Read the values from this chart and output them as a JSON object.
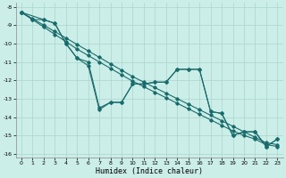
{
  "xlabel": "Humidex (Indice chaleur)",
  "background_color": "#cceee8",
  "grid_color": "#aad4cc",
  "line_color": "#1a6b6b",
  "xlim": [
    0,
    23
  ],
  "ylim": [
    -16,
    -8
  ],
  "yticks": [
    -8,
    -9,
    -10,
    -11,
    -12,
    -13,
    -14,
    -15,
    -16
  ],
  "xticks": [
    0,
    1,
    2,
    3,
    4,
    5,
    6,
    7,
    8,
    9,
    10,
    11,
    12,
    13,
    14,
    15,
    16,
    17,
    18,
    19,
    20,
    21,
    22,
    23
  ],
  "series": [
    {
      "x": [
        0,
        1,
        2,
        3,
        4,
        5,
        6,
        7,
        8,
        9,
        10,
        11,
        12,
        13,
        14,
        15,
        16,
        17,
        18,
        19,
        20,
        21,
        22,
        23
      ],
      "y": [
        -8.3,
        -8.65,
        -9.0,
        -9.35,
        -9.7,
        -10.05,
        -10.4,
        -10.75,
        -11.1,
        -11.45,
        -11.8,
        -12.1,
        -12.4,
        -12.7,
        -13.0,
        -13.3,
        -13.6,
        -13.9,
        -14.2,
        -14.5,
        -14.8,
        -15.1,
        -15.4,
        -15.5
      ]
    },
    {
      "x": [
        0,
        1,
        2,
        3,
        4,
        5,
        6,
        7,
        8,
        9,
        10,
        11,
        12,
        13,
        14,
        15,
        16,
        17,
        18,
        19,
        20,
        21,
        22,
        23
      ],
      "y": [
        -8.3,
        -8.7,
        -9.1,
        -9.5,
        -9.9,
        -10.3,
        -10.65,
        -11.0,
        -11.35,
        -11.7,
        -12.05,
        -12.35,
        -12.65,
        -12.95,
        -13.25,
        -13.55,
        -13.85,
        -14.15,
        -14.45,
        -14.75,
        -15.0,
        -15.2,
        -15.5,
        -15.6
      ]
    },
    {
      "x": [
        0,
        1,
        2,
        3,
        4,
        5,
        6,
        7,
        8,
        9,
        10,
        11,
        12,
        13,
        14,
        15,
        16,
        17,
        18,
        19,
        20,
        21,
        22,
        23
      ],
      "y": [
        -8.3,
        -8.7,
        -8.7,
        -8.9,
        -10.0,
        -10.8,
        -11.0,
        -13.5,
        -13.2,
        -13.2,
        -12.2,
        -12.2,
        -12.1,
        -12.1,
        -11.4,
        -11.4,
        -11.4,
        -13.7,
        -13.8,
        -15.0,
        -14.8,
        -14.8,
        -15.6,
        -15.2
      ]
    },
    {
      "x": [
        0,
        2,
        3,
        4,
        5,
        6,
        7,
        8,
        9,
        10,
        11,
        12,
        13,
        14,
        15,
        16,
        17,
        18,
        19,
        20,
        21,
        22,
        23
      ],
      "y": [
        -8.3,
        -8.7,
        -8.9,
        -10.0,
        -10.8,
        -11.2,
        -13.6,
        -13.2,
        -13.2,
        -12.2,
        -12.2,
        -12.1,
        -12.1,
        -11.4,
        -11.4,
        -11.4,
        -13.7,
        -13.8,
        -15.0,
        -14.8,
        -14.8,
        -15.6,
        -15.2
      ]
    }
  ]
}
